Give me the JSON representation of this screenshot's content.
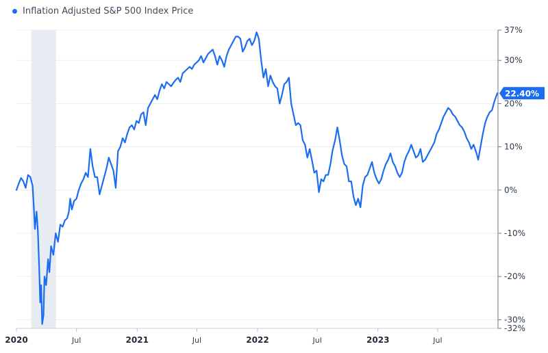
{
  "legend": {
    "label": "Inflation Adjusted S&P 500 Index Price",
    "color": "#1a6cf0",
    "position": "top-left"
  },
  "chart_data": {
    "type": "line",
    "title": "",
    "xlabel": "",
    "ylabel": "",
    "grid": true,
    "ylim": [
      -32,
      37
    ],
    "xlim": [
      "2020-01-01",
      "2023-12-31"
    ],
    "y_ticks": [
      {
        "value": 37,
        "label": "37%"
      },
      {
        "value": 30,
        "label": "30%"
      },
      {
        "value": 20,
        "label": "20%"
      },
      {
        "value": 10,
        "label": "10%"
      },
      {
        "value": 0,
        "label": "0%"
      },
      {
        "value": -10,
        "label": "-10%"
      },
      {
        "value": -20,
        "label": "-20%"
      },
      {
        "value": -30,
        "label": "-30%"
      },
      {
        "value": -32,
        "label": "-32%"
      }
    ],
    "x_ticks": [
      {
        "date": "2020-01-01",
        "label": "2020",
        "major": true
      },
      {
        "date": "2020-07-01",
        "label": "Jul",
        "major": false
      },
      {
        "date": "2021-01-01",
        "label": "2021",
        "major": true
      },
      {
        "date": "2021-07-01",
        "label": "Jul",
        "major": false
      },
      {
        "date": "2022-01-01",
        "label": "2022",
        "major": true
      },
      {
        "date": "2022-07-01",
        "label": "Jul",
        "major": false
      },
      {
        "date": "2023-01-01",
        "label": "2023",
        "major": true
      },
      {
        "date": "2023-07-01",
        "label": "Jul",
        "major": false
      }
    ],
    "shaded_region": {
      "start": "2020-02-15",
      "end": "2020-04-30",
      "color": "#e6ecf2"
    },
    "last_value_label": "22.40%",
    "series": [
      {
        "name": "Inflation Adjusted S&P 500 Index Price",
        "color": "#1a6cf0",
        "x": [
          "2020-01-01",
          "2020-01-08",
          "2020-01-15",
          "2020-01-22",
          "2020-01-29",
          "2020-02-05",
          "2020-02-12",
          "2020-02-19",
          "2020-02-22",
          "2020-02-26",
          "2020-03-02",
          "2020-03-06",
          "2020-03-10",
          "2020-03-13",
          "2020-03-16",
          "2020-03-19",
          "2020-03-23",
          "2020-03-26",
          "2020-03-31",
          "2020-04-06",
          "2020-04-10",
          "2020-04-15",
          "2020-04-22",
          "2020-04-29",
          "2020-05-06",
          "2020-05-13",
          "2020-05-20",
          "2020-05-27",
          "2020-06-03",
          "2020-06-08",
          "2020-06-12",
          "2020-06-17",
          "2020-06-24",
          "2020-07-01",
          "2020-07-08",
          "2020-07-15",
          "2020-07-22",
          "2020-07-29",
          "2020-08-05",
          "2020-08-12",
          "2020-08-19",
          "2020-08-26",
          "2020-09-02",
          "2020-09-09",
          "2020-09-16",
          "2020-09-23",
          "2020-09-30",
          "2020-10-07",
          "2020-10-14",
          "2020-10-21",
          "2020-10-28",
          "2020-11-04",
          "2020-11-11",
          "2020-11-18",
          "2020-11-25",
          "2020-12-02",
          "2020-12-09",
          "2020-12-16",
          "2020-12-23",
          "2020-12-30",
          "2021-01-06",
          "2021-01-13",
          "2021-01-20",
          "2021-01-27",
          "2021-02-03",
          "2021-02-10",
          "2021-02-17",
          "2021-02-24",
          "2021-03-03",
          "2021-03-10",
          "2021-03-17",
          "2021-03-24",
          "2021-03-31",
          "2021-04-07",
          "2021-04-14",
          "2021-04-21",
          "2021-04-28",
          "2021-05-05",
          "2021-05-12",
          "2021-05-19",
          "2021-05-26",
          "2021-06-02",
          "2021-06-09",
          "2021-06-16",
          "2021-06-23",
          "2021-06-30",
          "2021-07-07",
          "2021-07-14",
          "2021-07-21",
          "2021-07-28",
          "2021-08-04",
          "2021-08-11",
          "2021-08-18",
          "2021-08-25",
          "2021-09-01",
          "2021-09-08",
          "2021-09-15",
          "2021-09-22",
          "2021-09-29",
          "2021-10-06",
          "2021-10-13",
          "2021-10-20",
          "2021-10-27",
          "2021-11-03",
          "2021-11-10",
          "2021-11-17",
          "2021-11-24",
          "2021-12-01",
          "2021-12-08",
          "2021-12-15",
          "2021-12-22",
          "2021-12-29",
          "2022-01-05",
          "2022-01-12",
          "2022-01-19",
          "2022-01-26",
          "2022-02-02",
          "2022-02-09",
          "2022-02-16",
          "2022-02-23",
          "2022-03-02",
          "2022-03-09",
          "2022-03-16",
          "2022-03-23",
          "2022-03-30",
          "2022-04-06",
          "2022-04-13",
          "2022-04-20",
          "2022-04-27",
          "2022-05-04",
          "2022-05-11",
          "2022-05-18",
          "2022-05-25",
          "2022-06-01",
          "2022-06-08",
          "2022-06-16",
          "2022-06-22",
          "2022-06-29",
          "2022-07-06",
          "2022-07-13",
          "2022-07-20",
          "2022-07-27",
          "2022-08-03",
          "2022-08-10",
          "2022-08-16",
          "2022-08-24",
          "2022-08-31",
          "2022-09-07",
          "2022-09-14",
          "2022-09-21",
          "2022-09-28",
          "2022-10-05",
          "2022-10-12",
          "2022-10-19",
          "2022-10-26",
          "2022-11-02",
          "2022-11-09",
          "2022-11-16",
          "2022-11-23",
          "2022-11-30",
          "2022-12-07",
          "2022-12-14",
          "2022-12-21",
          "2022-12-28",
          "2023-01-04",
          "2023-01-11",
          "2023-01-18",
          "2023-01-25",
          "2023-02-01",
          "2023-02-08",
          "2023-02-15",
          "2023-02-22",
          "2023-03-01",
          "2023-03-08",
          "2023-03-15",
          "2023-03-22",
          "2023-03-29",
          "2023-04-05",
          "2023-04-12",
          "2023-04-19",
          "2023-04-26",
          "2023-05-03",
          "2023-05-10",
          "2023-05-17",
          "2023-05-24",
          "2023-05-31",
          "2023-06-07",
          "2023-06-14",
          "2023-06-21",
          "2023-06-28",
          "2023-07-05",
          "2023-07-12",
          "2023-07-19",
          "2023-07-26",
          "2023-08-02",
          "2023-08-09",
          "2023-08-16",
          "2023-08-23",
          "2023-08-30",
          "2023-09-06",
          "2023-09-13",
          "2023-09-20",
          "2023-09-27",
          "2023-10-04",
          "2023-10-11",
          "2023-10-18",
          "2023-10-27",
          "2023-11-01",
          "2023-11-08",
          "2023-11-15",
          "2023-11-22",
          "2023-11-29",
          "2023-12-06",
          "2023-12-13",
          "2023-12-20",
          "2023-12-29"
        ],
        "values": [
          0.0,
          1.5,
          2.8,
          2.0,
          0.5,
          3.5,
          3.0,
          1.0,
          -3.0,
          -9.0,
          -5.0,
          -9.5,
          -18.0,
          -26.0,
          -22.0,
          -31.0,
          -29.0,
          -20.0,
          -22.0,
          -16.0,
          -19.0,
          -13.0,
          -15.0,
          -10.0,
          -12.0,
          -8.0,
          -8.5,
          -7.0,
          -6.5,
          -5.0,
          -2.0,
          -4.5,
          -2.5,
          -2.0,
          0.0,
          1.5,
          2.5,
          4.0,
          3.0,
          9.5,
          5.5,
          3.0,
          3.0,
          -1.0,
          1.0,
          3.0,
          5.0,
          7.5,
          6.0,
          4.5,
          0.5,
          9.0,
          10.0,
          12.0,
          11.0,
          13.0,
          14.5,
          15.0,
          14.0,
          16.0,
          15.5,
          17.5,
          18.0,
          15.0,
          19.0,
          20.0,
          21.0,
          22.0,
          21.0,
          23.0,
          24.5,
          23.5,
          25.0,
          24.5,
          24.0,
          24.8,
          25.5,
          26.0,
          25.0,
          27.0,
          27.5,
          28.0,
          28.5,
          28.0,
          29.0,
          29.5,
          30.0,
          31.0,
          29.5,
          30.5,
          31.5,
          32.0,
          32.5,
          31.0,
          29.0,
          31.0,
          30.0,
          28.5,
          31.0,
          32.5,
          33.5,
          34.5,
          35.5,
          35.5,
          35.0,
          32.0,
          33.0,
          34.5,
          35.0,
          33.5,
          34.5,
          36.5,
          35.0,
          30.0,
          26.0,
          28.0,
          24.0,
          26.5,
          25.0,
          24.0,
          23.5,
          20.0,
          22.0,
          24.5,
          25.0,
          26.0,
          20.0,
          17.5,
          15.0,
          15.5,
          15.0,
          11.5,
          10.5,
          7.5,
          9.5,
          6.5,
          4.0,
          4.5,
          -0.5,
          2.5,
          2.0,
          3.5,
          3.5,
          6.0,
          9.0,
          11.5,
          14.5,
          11.5,
          8.0,
          6.0,
          5.5,
          2.0,
          2.0,
          -1.5,
          -3.5,
          -2.0,
          -4.0,
          1.0,
          3.0,
          3.5,
          5.0,
          6.5,
          4.0,
          2.5,
          1.5,
          2.5,
          4.5,
          6.0,
          7.0,
          8.5,
          6.5,
          5.5,
          4.0,
          3.0,
          4.0,
          6.5,
          8.0,
          9.0,
          10.5,
          9.0,
          7.5,
          8.0,
          9.5,
          6.5,
          7.0,
          8.0,
          9.0,
          10.0,
          11.0,
          13.0,
          14.0,
          15.5,
          17.0,
          18.0,
          19.0,
          18.5,
          17.5,
          17.0,
          16.0,
          15.0,
          14.5,
          13.5,
          12.0,
          11.0,
          9.5,
          10.5,
          8.5,
          7.0,
          10.0,
          13.0,
          15.5,
          17.0,
          18.0,
          18.5,
          20.5,
          22.4
        ]
      }
    ]
  }
}
